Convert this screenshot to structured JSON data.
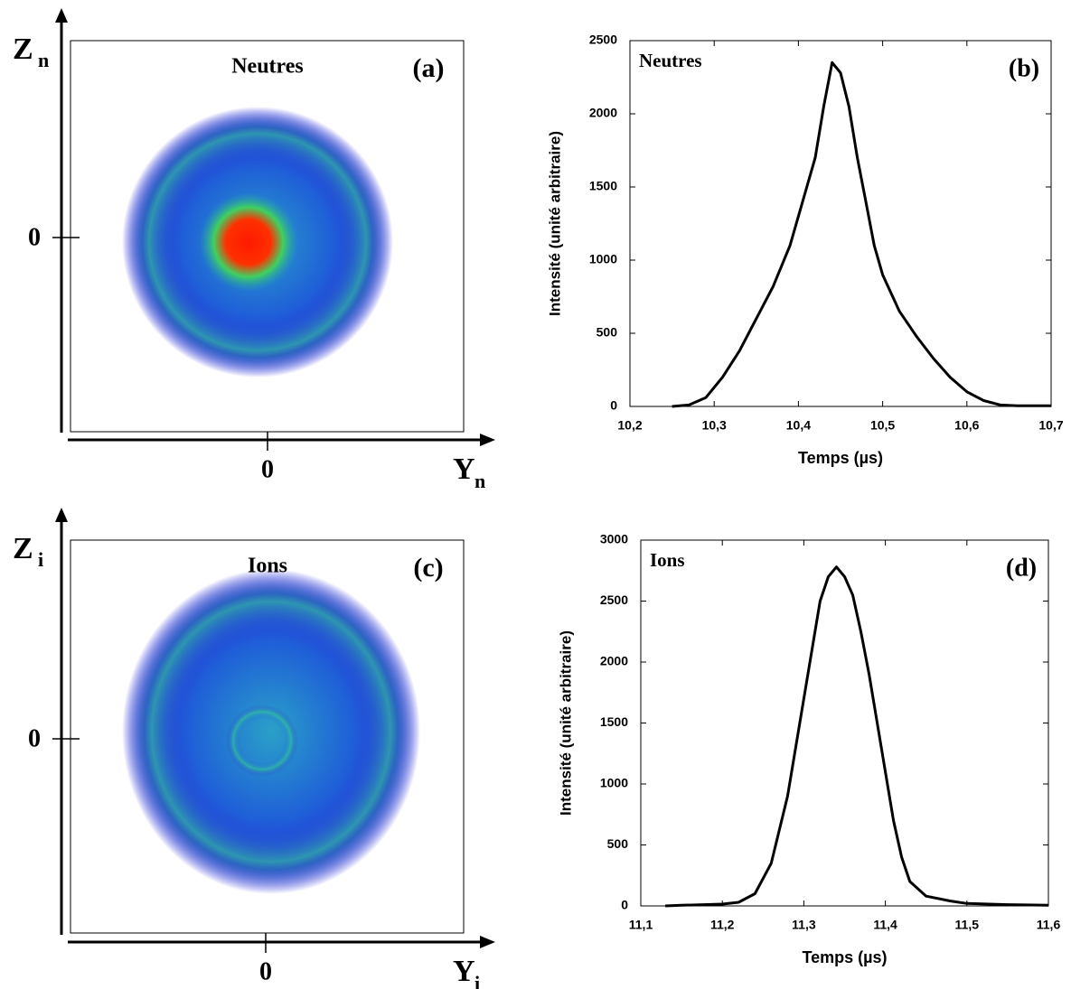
{
  "chart_data": [
    {
      "type": "image",
      "title": "Neutres",
      "panel": "(a)",
      "x_label": "Y",
      "x_label_sub": "n",
      "y_label": "Z",
      "y_label_sub": "n",
      "xticks": [
        0
      ],
      "yticks": [
        0
      ]
    },
    {
      "type": "line",
      "title": "Neutres",
      "panel": "(b)",
      "x_label": "Temps (µs)",
      "y_label": "Intensité (unité arbitraire)",
      "x": [
        10.25,
        10.27,
        10.29,
        10.31,
        10.33,
        10.35,
        10.37,
        10.39,
        10.41,
        10.42,
        10.43,
        10.44,
        10.45,
        10.46,
        10.47,
        10.48,
        10.49,
        10.5,
        10.52,
        10.54,
        10.56,
        10.58,
        10.6,
        10.62,
        10.64,
        10.66,
        10.7
      ],
      "values": [
        0,
        10,
        60,
        200,
        380,
        600,
        820,
        1100,
        1500,
        1700,
        2050,
        2350,
        2280,
        2050,
        1700,
        1400,
        1100,
        900,
        650,
        480,
        330,
        200,
        100,
        40,
        10,
        5,
        5
      ],
      "color": "#000000",
      "xlim": [
        10.2,
        10.7
      ],
      "ylim": [
        0,
        2500
      ],
      "xticks": [
        {
          "value": 10.2,
          "label": "10,2"
        },
        {
          "value": 10.3,
          "label": "10,3"
        },
        {
          "value": 10.4,
          "label": "10,4"
        },
        {
          "value": 10.5,
          "label": "10,5"
        },
        {
          "value": 10.6,
          "label": "10,6"
        },
        {
          "value": 10.7,
          "label": "10,7"
        }
      ],
      "yticks": [
        0,
        500,
        1000,
        1500,
        2000,
        2500
      ]
    },
    {
      "type": "image",
      "title": "Ions",
      "panel": "(c)",
      "x_label": "Y",
      "x_label_sub": "i",
      "y_label": "Z",
      "y_label_sub": "i",
      "xticks": [
        0
      ],
      "yticks": [
        0
      ]
    },
    {
      "type": "line",
      "title": "Ions",
      "panel": "(d)",
      "x_label": "Temps (µs)",
      "y_label": "Intensité (unité arbitraire)",
      "x": [
        11.13,
        11.15,
        11.2,
        11.22,
        11.24,
        11.26,
        11.28,
        11.29,
        11.3,
        11.31,
        11.32,
        11.33,
        11.34,
        11.35,
        11.36,
        11.37,
        11.38,
        11.39,
        11.4,
        11.41,
        11.42,
        11.43,
        11.45,
        11.48,
        11.5,
        11.55,
        11.6
      ],
      "values": [
        0,
        5,
        15,
        30,
        100,
        350,
        900,
        1300,
        1700,
        2100,
        2500,
        2700,
        2780,
        2700,
        2550,
        2250,
        1900,
        1500,
        1100,
        700,
        400,
        200,
        80,
        40,
        20,
        10,
        5
      ],
      "color": "#000000",
      "xlim": [
        11.1,
        11.6
      ],
      "ylim": [
        0,
        3000
      ],
      "xticks": [
        {
          "value": 11.1,
          "label": "11,1"
        },
        {
          "value": 11.2,
          "label": "11,2"
        },
        {
          "value": 11.3,
          "label": "11,3"
        },
        {
          "value": 11.4,
          "label": "11,4"
        },
        {
          "value": 11.5,
          "label": "11,5"
        },
        {
          "value": 11.6,
          "label": "11,6"
        }
      ],
      "yticks": [
        0,
        500,
        1000,
        1500,
        2000,
        2500,
        3000
      ]
    }
  ]
}
